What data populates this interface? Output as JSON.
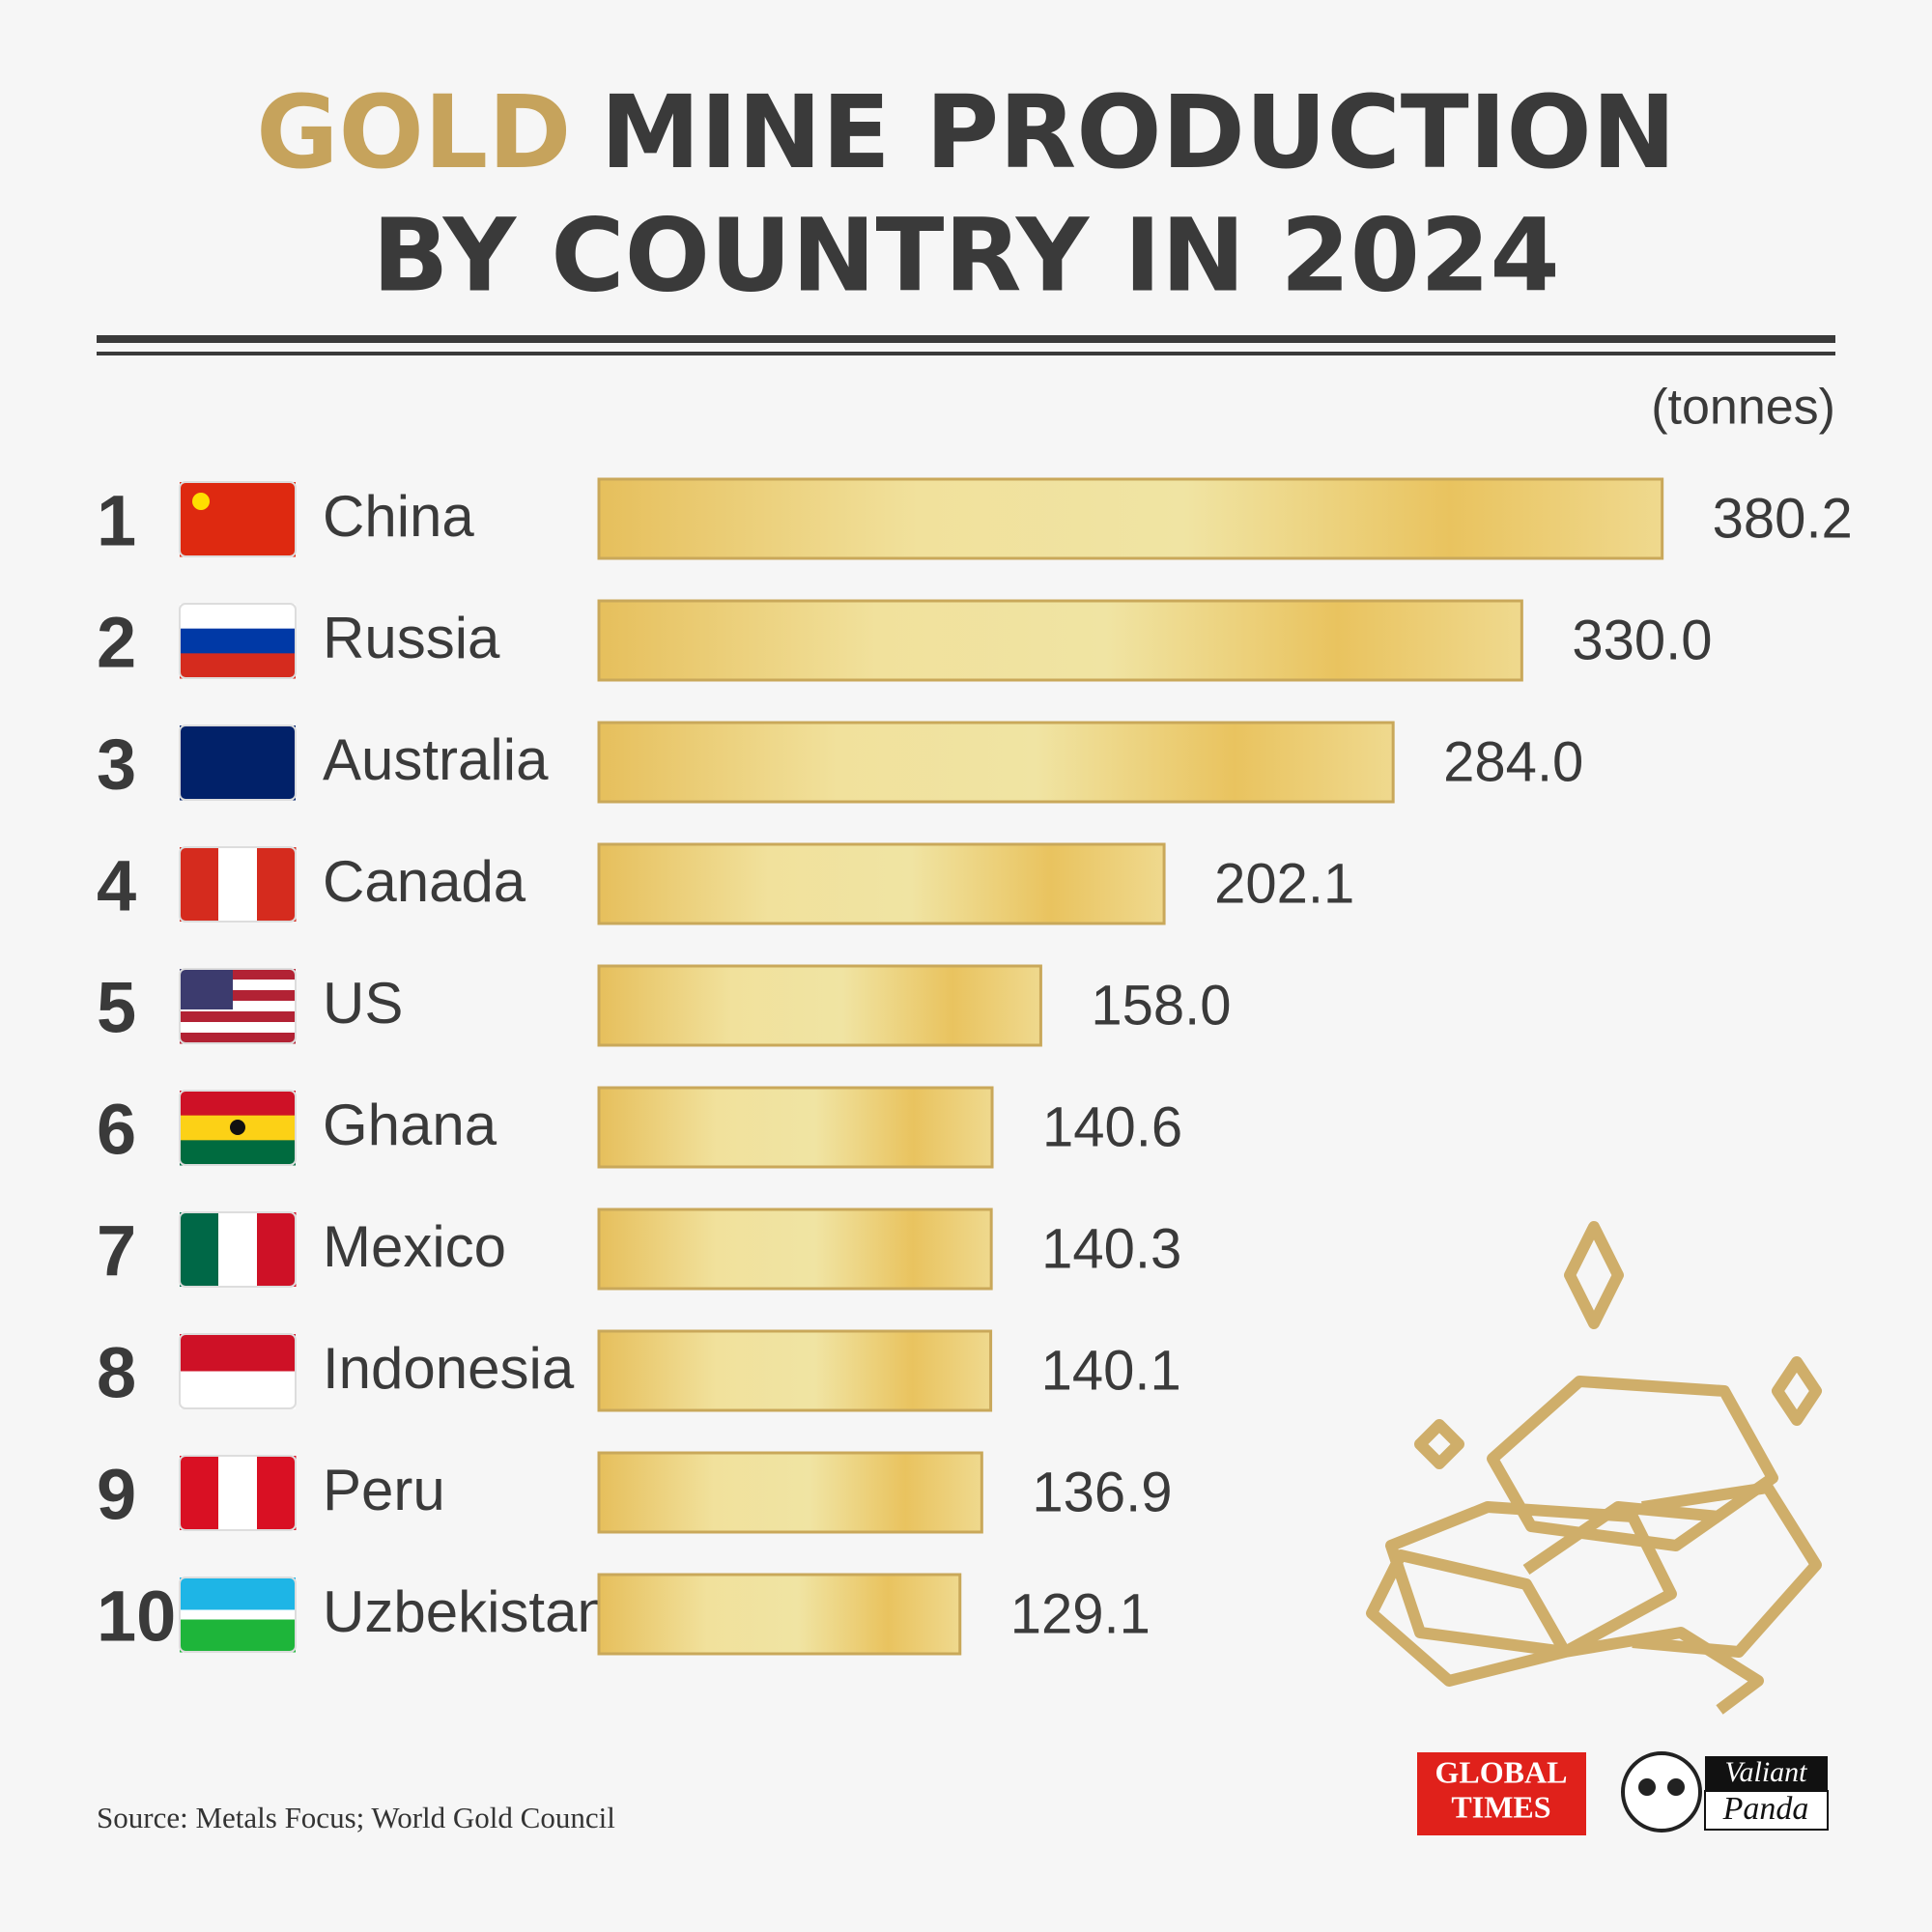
{
  "chart_data": {
    "type": "bar",
    "orientation": "horizontal",
    "title_parts": [
      "GOLD",
      "MINE PRODUCTION",
      "BY COUNTRY IN 2024"
    ],
    "title_highlight_color": "#c6a35c",
    "unit": "(tonnes)",
    "ranks": [
      1,
      2,
      3,
      4,
      5,
      6,
      7,
      8,
      9,
      10
    ],
    "categories": [
      "China",
      "Russia",
      "Australia",
      "Canada",
      "US",
      "Ghana",
      "Mexico",
      "Indonesia",
      "Peru",
      "Uzbekistan"
    ],
    "values": [
      380.2,
      330.0,
      284.0,
      202.1,
      158.0,
      140.6,
      140.3,
      140.1,
      136.9,
      129.1
    ],
    "value_labels": [
      "380.2",
      "330.0",
      "284.0",
      "202.1",
      "158.0",
      "140.6",
      "140.3",
      "140.1",
      "136.9",
      "129.1"
    ],
    "color": "#e9c35f",
    "source": "Source: Metals Focus; World Gold Council",
    "logos": {
      "global_times": [
        "GLOBAL",
        "TIMES"
      ],
      "valiant_panda": [
        "Valiant",
        "Panda"
      ]
    }
  }
}
